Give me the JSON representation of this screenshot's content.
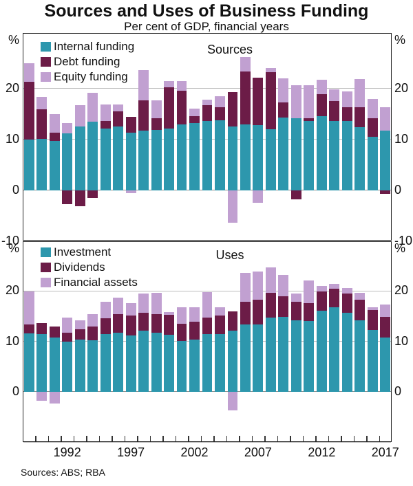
{
  "title": "Sources and Uses of Business Funding",
  "subtitle": "Per cent of GDP, financial years",
  "footer": "Sources: ABS; RBA",
  "axis": {
    "unit_label": "%",
    "x_tick_labels": [
      "1992",
      "1997",
      "2002",
      "2007",
      "2012",
      "2017"
    ],
    "x_tick_years": [
      1992,
      1997,
      2002,
      2007,
      2012,
      2017
    ]
  },
  "colors": {
    "teal": "#2d97ad",
    "maroon": "#6c1c47",
    "purple": "#c1a0d1",
    "gridline": "#bcbcbc",
    "zero_line": "#8f8f8f"
  },
  "chart_data": [
    {
      "type": "bar",
      "stacked": true,
      "panel_label": "Sources",
      "ylabel": "%",
      "ylim": [
        -10,
        30.8
      ],
      "yticks": [
        0,
        10,
        20
      ],
      "grid": true,
      "legend_position": "top-left",
      "x": [
        1989,
        1990,
        1991,
        1992,
        1993,
        1994,
        1995,
        1996,
        1997,
        1998,
        1999,
        2000,
        2001,
        2002,
        2003,
        2004,
        2005,
        2006,
        2007,
        2008,
        2009,
        2010,
        2011,
        2012,
        2013,
        2014,
        2015,
        2016,
        2017
      ],
      "series": [
        {
          "name": "Internal funding",
          "color": "#2d97ad",
          "values": [
            10.0,
            10.1,
            9.7,
            11.2,
            12.6,
            13.5,
            12.2,
            12.6,
            11.4,
            11.7,
            11.9,
            12.1,
            12.9,
            13.2,
            13.7,
            13.8,
            12.6,
            12.9,
            12.8,
            12.0,
            14.3,
            14.2,
            13.7,
            14.6,
            13.7,
            13.7,
            12.4,
            10.6,
            11.7
          ]
        },
        {
          "name": "Debt funding",
          "color": "#6c1c47",
          "values": [
            11.4,
            5.9,
            1.7,
            -2.7,
            -3.1,
            -1.5,
            1.4,
            2.9,
            3.0,
            6.0,
            2.3,
            8.2,
            6.7,
            1.4,
            3.0,
            2.5,
            6.7,
            10.5,
            9.3,
            11.2,
            3.0,
            -1.7,
            0.5,
            4.3,
            3.9,
            2.7,
            3.9,
            3.6,
            -0.7
          ]
        },
        {
          "name": "Equity funding",
          "color": "#c1a0d1",
          "values": [
            3.6,
            2.4,
            3.6,
            2.0,
            4.1,
            5.7,
            3.3,
            1.4,
            -0.6,
            5.9,
            3.5,
            1.2,
            1.9,
            1.5,
            1.1,
            2.2,
            -6.3,
            2.8,
            -2.5,
            0.8,
            4.7,
            6.5,
            6.5,
            2.8,
            2.3,
            3.0,
            5.6,
            3.7,
            4.6
          ]
        }
      ]
    },
    {
      "type": "bar",
      "stacked": true,
      "panel_label": "Uses",
      "ylabel": "%",
      "ylim": [
        -10.1,
        29.7
      ],
      "yticks": [
        -10,
        0,
        10,
        20
      ],
      "grid": true,
      "legend_position": "top-left",
      "x": [
        1989,
        1990,
        1991,
        1992,
        1993,
        1994,
        1995,
        1996,
        1997,
        1998,
        1999,
        2000,
        2001,
        2002,
        2003,
        2004,
        2005,
        2006,
        2007,
        2008,
        2009,
        2010,
        2011,
        2012,
        2013,
        2014,
        2015,
        2016,
        2017
      ],
      "series": [
        {
          "name": "Investment",
          "color": "#2d97ad",
          "values": [
            11.6,
            11.5,
            10.7,
            9.9,
            10.3,
            10.2,
            11.4,
            11.7,
            11.2,
            12.1,
            11.7,
            11.3,
            10.1,
            10.4,
            11.5,
            11.4,
            12.1,
            13.3,
            13.3,
            14.7,
            14.8,
            14.1,
            14.0,
            16.1,
            16.8,
            15.6,
            14.1,
            12.3,
            10.8
          ]
        },
        {
          "name": "Dividends",
          "color": "#6c1c47",
          "values": [
            1.7,
            2.1,
            2.2,
            1.8,
            2.1,
            2.8,
            3.2,
            3.7,
            3.9,
            3.5,
            3.7,
            4.0,
            3.4,
            3.5,
            3.2,
            3.7,
            3.9,
            4.5,
            4.9,
            4.9,
            4.2,
            3.7,
            3.6,
            3.8,
            3.6,
            3.9,
            4.1,
            3.9,
            4.1
          ]
        },
        {
          "name": "Financial assets",
          "color": "#c1a0d1",
          "values": [
            6.6,
            -1.8,
            -2.3,
            3.0,
            1.7,
            2.4,
            3.3,
            3.2,
            2.5,
            3.9,
            4.2,
            0.5,
            3.2,
            2.8,
            5.0,
            1.6,
            -3.7,
            5.8,
            5.6,
            5.1,
            4.1,
            1.7,
            4.4,
            1.1,
            1.0,
            1.0,
            1.4,
            0.5,
            2.4
          ]
        }
      ]
    }
  ]
}
